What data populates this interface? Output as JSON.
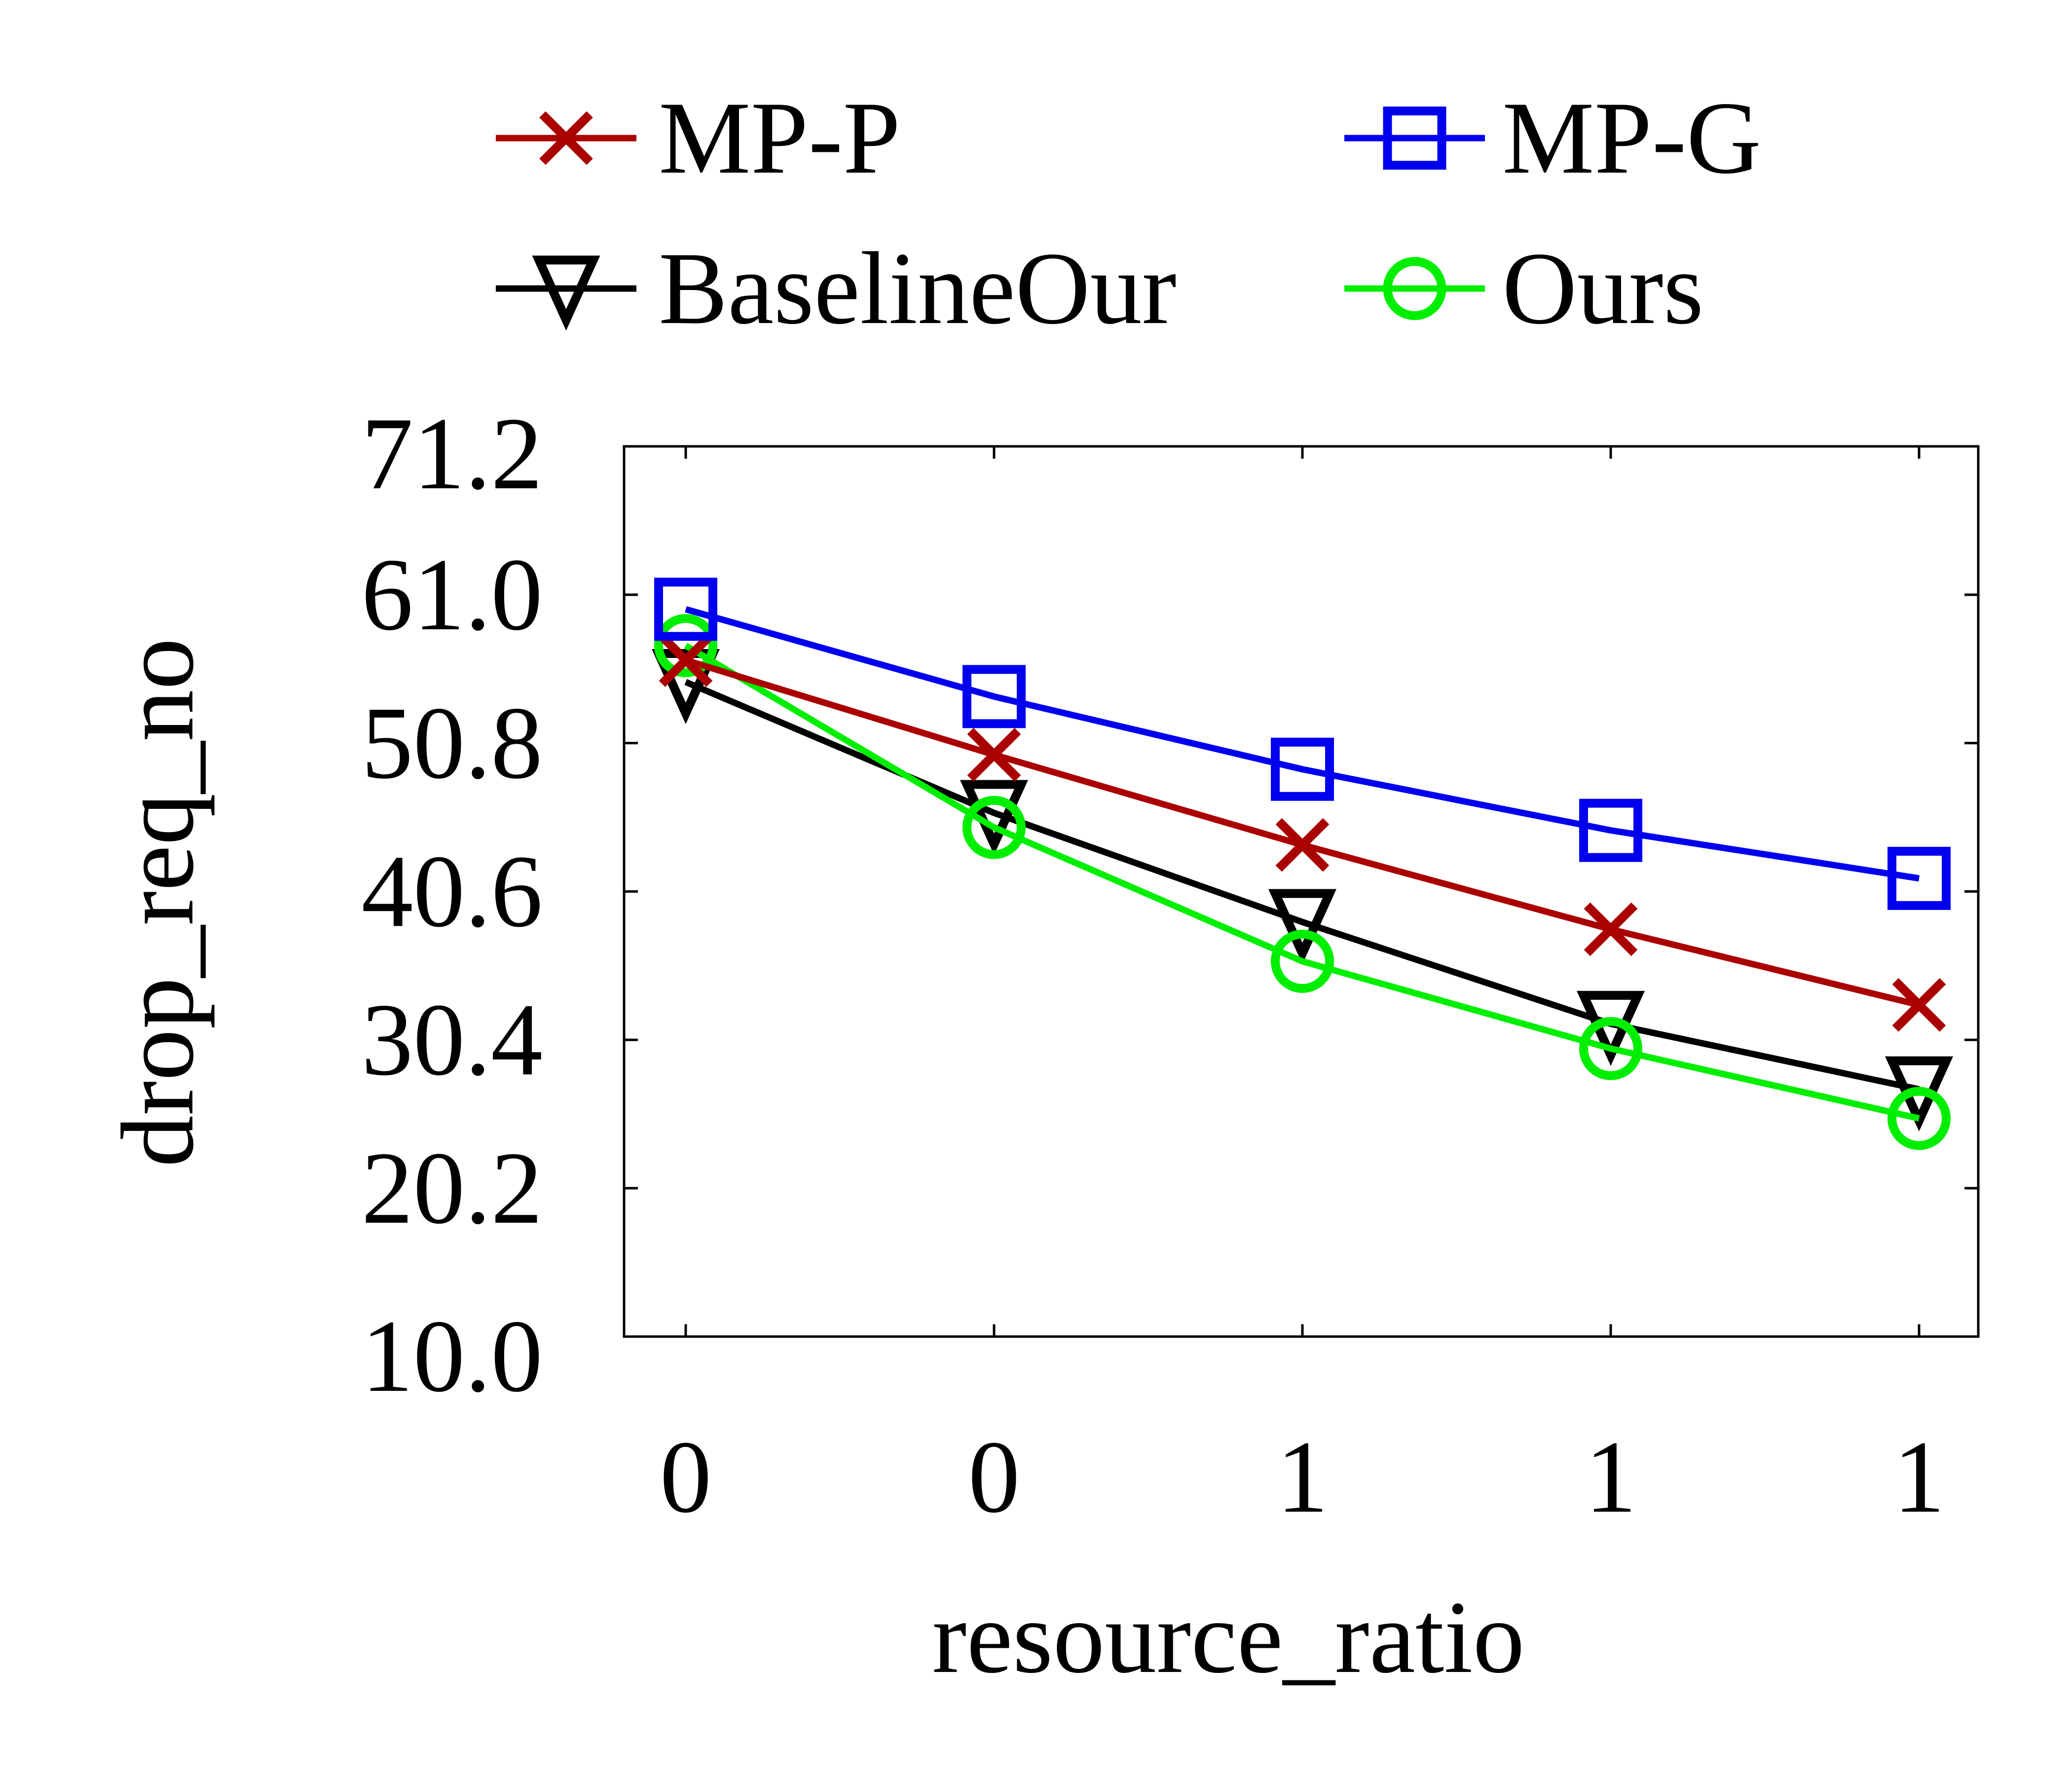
{
  "chart_data": {
    "type": "line",
    "xlabel": "resource_ratio",
    "ylabel": "drop_req_no",
    "categories": [
      "0",
      "0",
      "1",
      "1",
      "1"
    ],
    "yticks": [
      "10.0",
      "20.2",
      "30.4",
      "40.6",
      "50.8",
      "61.0",
      "71.2"
    ],
    "ylim": [
      10.0,
      71.2
    ],
    "grid": false,
    "legend_position": "top",
    "series": [
      {
        "name": "MP-P",
        "color": "#aa0000",
        "marker": "x-mark",
        "values": [
          56.5,
          50.0,
          43.8,
          38.0,
          32.8
        ]
      },
      {
        "name": "MP-G",
        "color": "#0000ee",
        "marker": "square",
        "values": [
          60.0,
          54.0,
          49.0,
          44.8,
          41.5
        ]
      },
      {
        "name": "BaselineOur",
        "color": "#000000",
        "marker": "triangle-down",
        "values": [
          55.0,
          46.0,
          38.5,
          31.5,
          27.0
        ]
      },
      {
        "name": "Ours",
        "color": "#00ee00",
        "marker": "circle",
        "values": [
          57.5,
          45.0,
          35.8,
          29.8,
          25.0
        ]
      }
    ]
  }
}
